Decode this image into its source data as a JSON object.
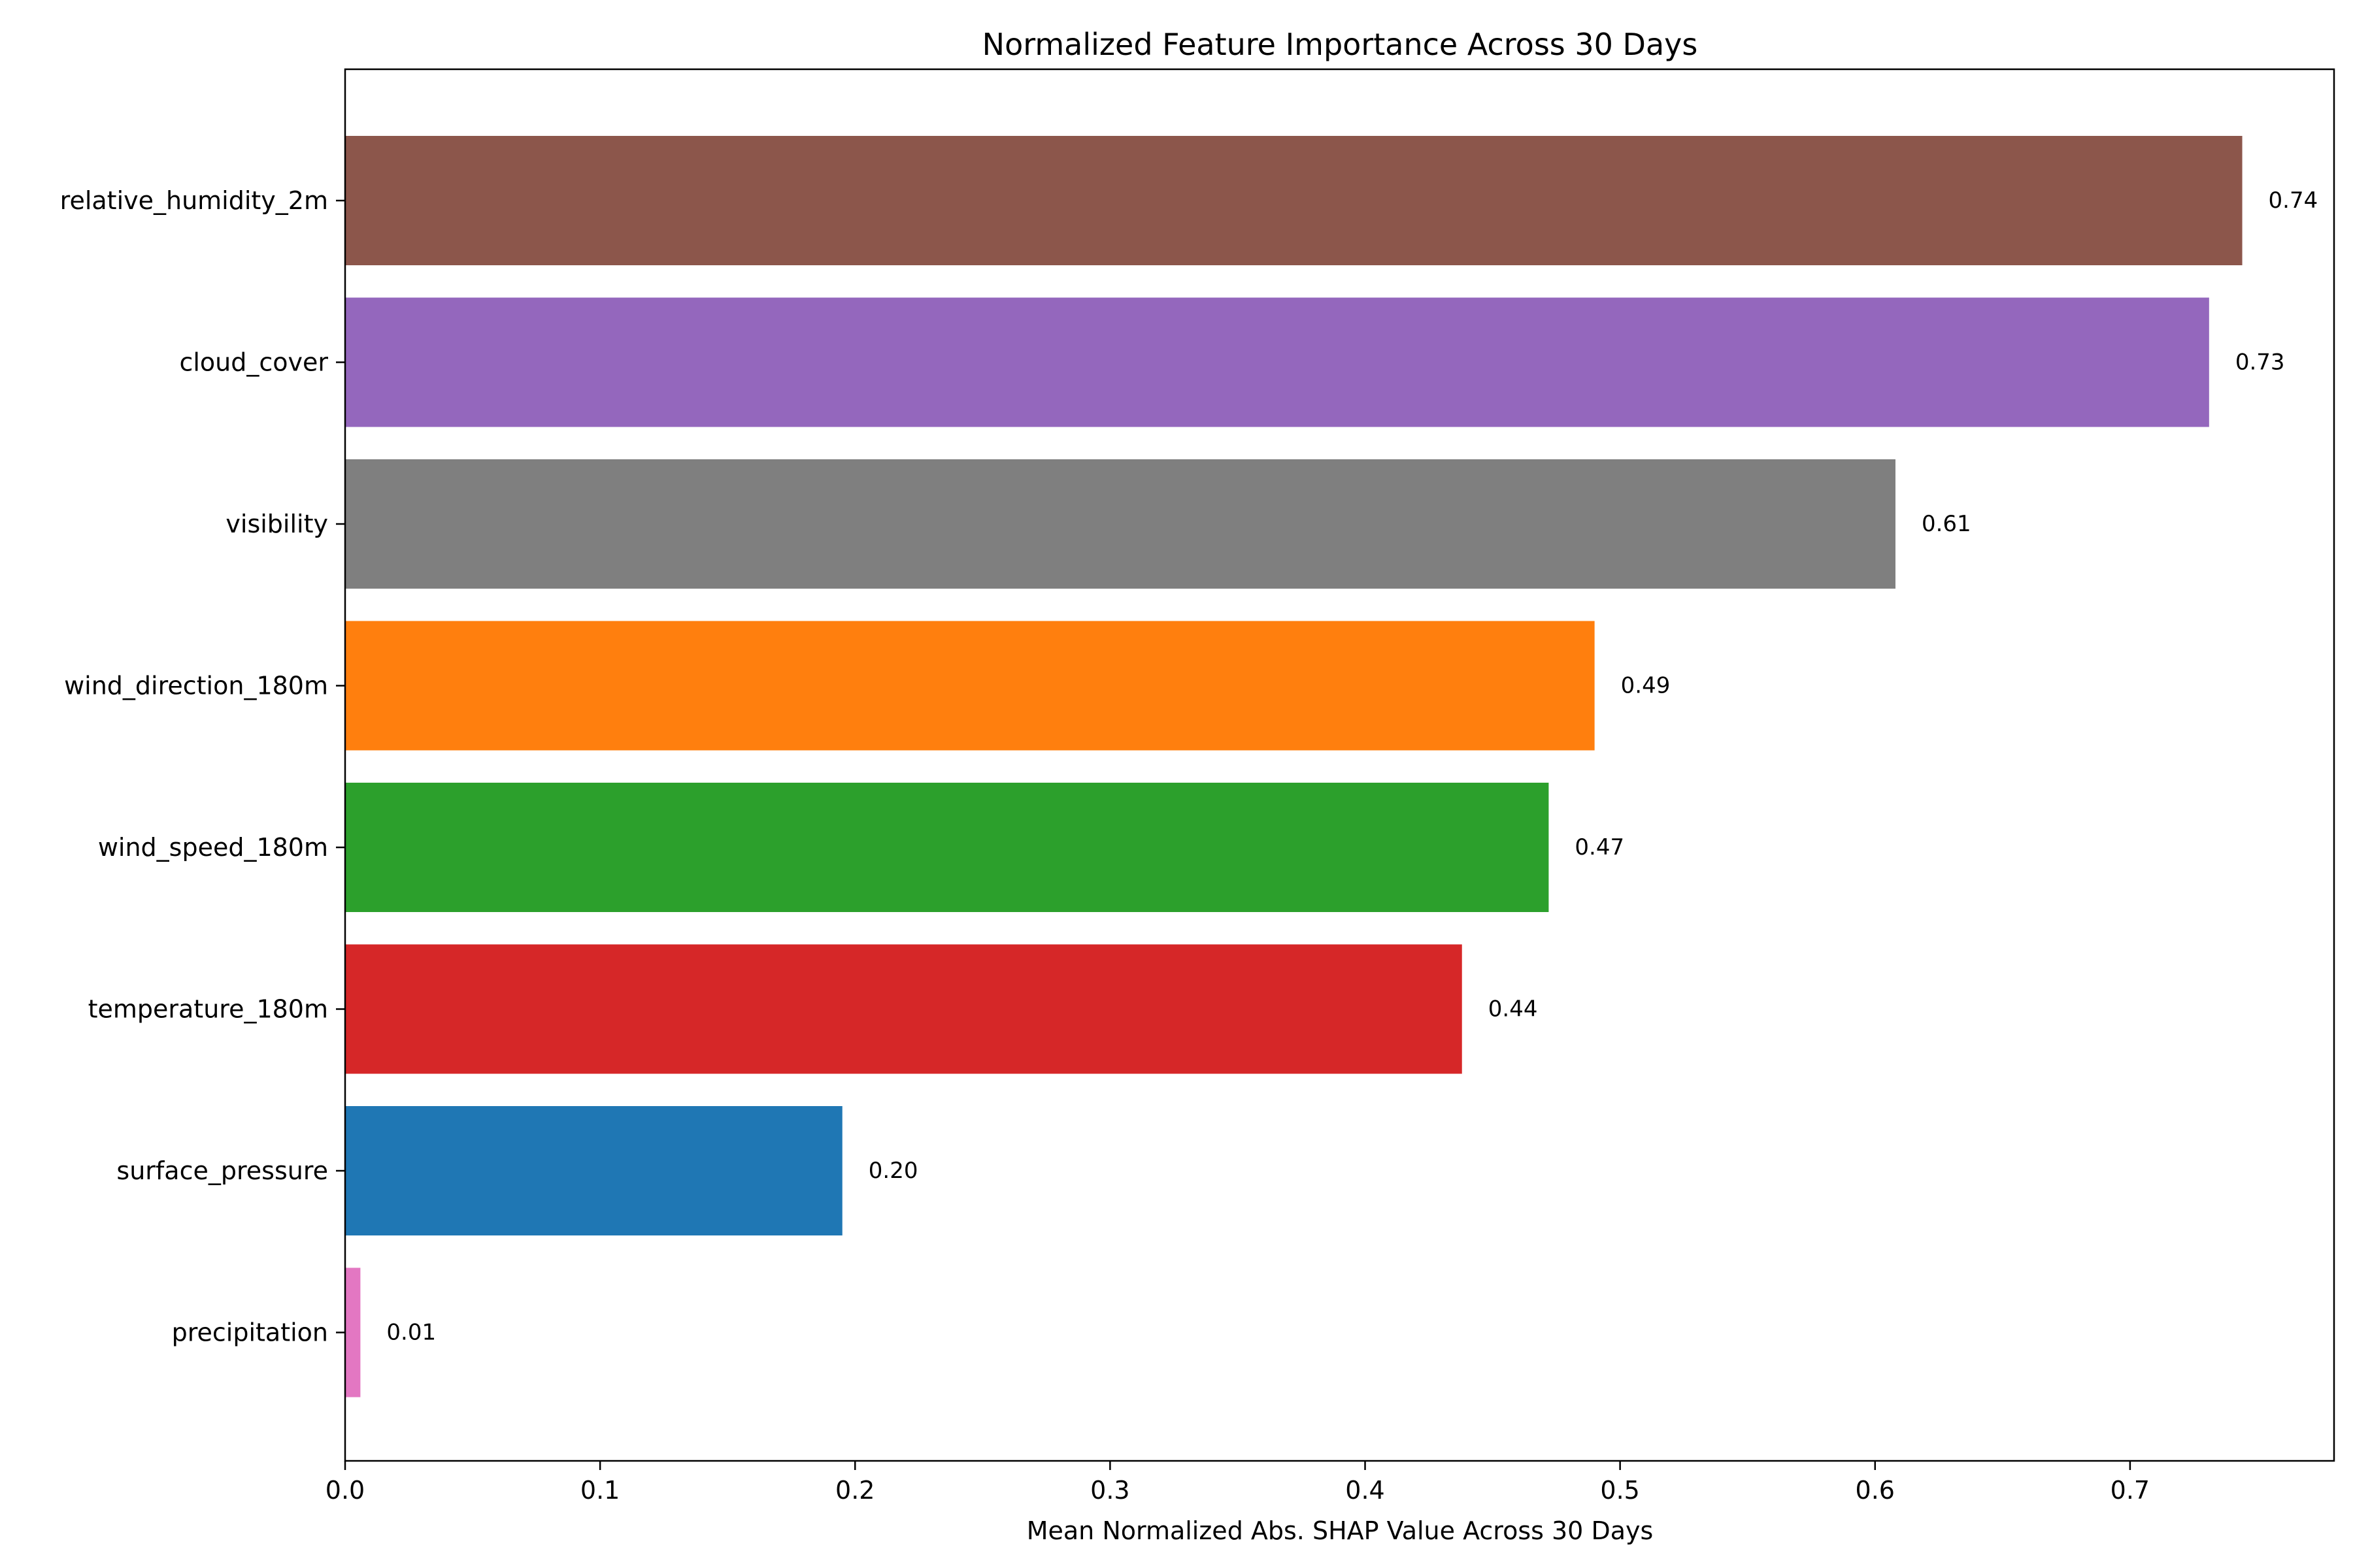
{
  "chart_data": {
    "type": "bar",
    "orientation": "horizontal",
    "title": "Normalized Feature Importance Across 30 Days",
    "xlabel": "Mean Normalized Abs. SHAP Value Across 30 Days",
    "ylabel": "",
    "xlim": [
      0,
      0.78
    ],
    "x_ticks": [
      "0.0",
      "0.1",
      "0.2",
      "0.3",
      "0.4",
      "0.5",
      "0.6",
      "0.7"
    ],
    "grid": false,
    "categories": [
      "relative_humidity_2m",
      "cloud_cover",
      "visibility",
      "wind_direction_180m",
      "wind_speed_180m",
      "temperature_180m",
      "surface_pressure",
      "precipitation"
    ],
    "values": [
      0.744,
      0.731,
      0.608,
      0.49,
      0.472,
      0.438,
      0.195,
      0.006
    ],
    "value_labels": [
      "0.74",
      "0.73",
      "0.61",
      "0.49",
      "0.47",
      "0.44",
      "0.20",
      "0.01"
    ],
    "colors": [
      "#8c564b",
      "#9467bd",
      "#7f7f7f",
      "#ff7f0e",
      "#2ca02c",
      "#d62728",
      "#1f77b4",
      "#e377c2"
    ]
  }
}
